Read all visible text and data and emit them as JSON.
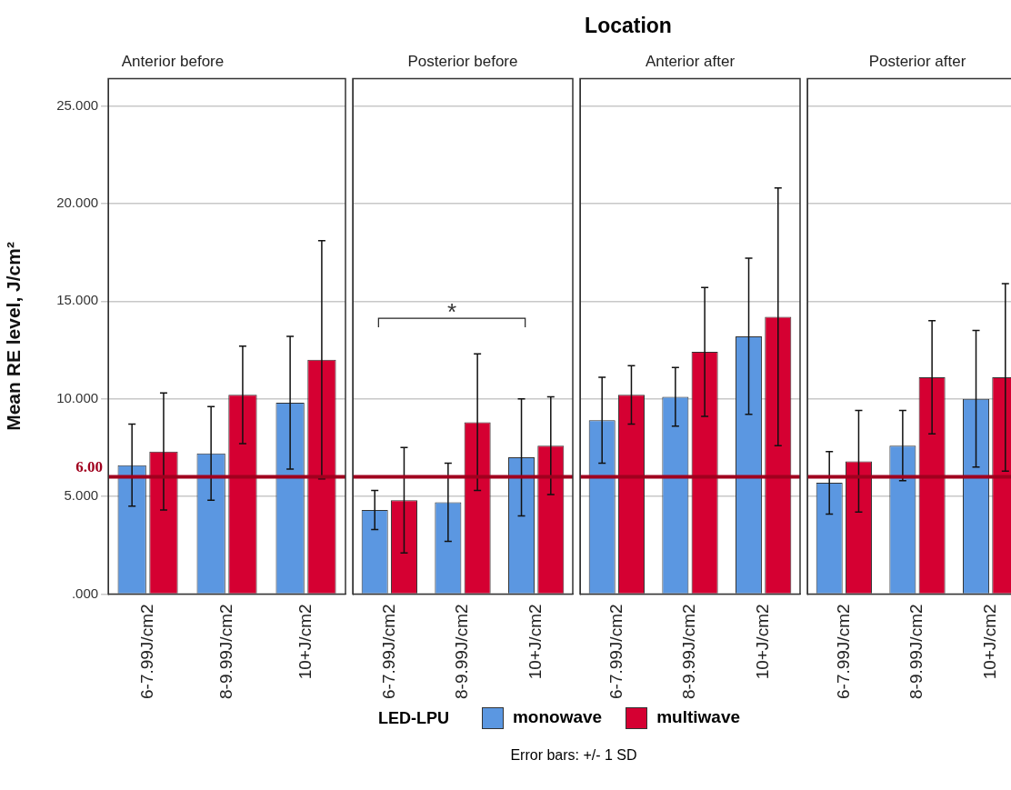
{
  "chart_data": [
    {
      "type": "bar",
      "subtitle": "Anterior before",
      "ylabel": "Mean RE level, J/cm²",
      "categories": [
        "6-7.99J/cm2",
        "8-9.99J/cm2",
        "10+J/cm2"
      ],
      "series": [
        {
          "name": "monowave",
          "color": "#5b97e1",
          "values": [
            6.6,
            7.2,
            9.8
          ],
          "errors": [
            2.1,
            2.4,
            3.4
          ]
        },
        {
          "name": "multiwave",
          "color": "#d50032",
          "values": [
            7.3,
            10.2,
            12.0
          ],
          "errors": [
            3.0,
            2.5,
            6.1
          ]
        }
      ],
      "ylim": [
        0,
        26.4
      ],
      "yticks": [
        {
          "value": 0,
          "label": ".000"
        },
        {
          "value": 5,
          "label": "5.000"
        },
        {
          "value": 10,
          "label": "10.000"
        },
        {
          "value": 15,
          "label": "15.000"
        },
        {
          "value": 20,
          "label": "20.000"
        },
        {
          "value": 25,
          "label": "25.000"
        }
      ],
      "grid": "y",
      "legend": "bottom",
      "legend_title": "LED-LPU",
      "ref_lines": [
        {
          "axis": "y",
          "value": 6,
          "label": "6.00",
          "color": "#a0001e"
        }
      ],
      "annotations": [
        "Error bars: +/- 1 SD"
      ]
    },
    {
      "type": "bar",
      "subtitle": "Posterior before",
      "categories": [
        "6-7.99J/cm2",
        "8-9.99J/cm2",
        "10+J/cm2"
      ],
      "series": [
        {
          "name": "monowave",
          "color": "#5b97e1",
          "values": [
            4.3,
            4.7,
            7.0
          ],
          "errors": [
            1.0,
            2.0,
            3.0
          ]
        },
        {
          "name": "multiwave",
          "color": "#d50032",
          "values": [
            4.8,
            8.8,
            7.6
          ],
          "errors": [
            2.7,
            3.5,
            2.5
          ]
        }
      ],
      "ylim": [
        0,
        26.4
      ],
      "yticks": [
        0,
        5,
        10,
        15,
        20,
        25
      ],
      "grid": "y",
      "tick_labels": "x",
      "ref_lines": [
        {
          "axis": "y",
          "value": 6,
          "color": "#a0001e"
        }
      ],
      "annotations": [
        "*"
      ]
    },
    {
      "type": "bar",
      "title": "Location",
      "subtitle": "Anterior after",
      "categories": [
        "6-7.99J/cm2",
        "8-9.99J/cm2",
        "10+J/cm2"
      ],
      "series": [
        {
          "name": "monowave",
          "color": "#5b97e1",
          "values": [
            8.9,
            10.1,
            13.2
          ],
          "errors": [
            2.2,
            1.5,
            4.0
          ]
        },
        {
          "name": "multiwave",
          "color": "#d50032",
          "values": [
            10.2,
            12.4,
            14.2
          ],
          "errors": [
            1.5,
            3.3,
            6.6
          ]
        }
      ],
      "ylim": [
        0,
        26.4
      ],
      "yticks": [
        0,
        5,
        10,
        15,
        20,
        25
      ],
      "grid": "y",
      "tick_labels": "x",
      "ref_lines": [
        {
          "axis": "y",
          "value": 6,
          "color": "#a0001e"
        }
      ]
    },
    {
      "type": "bar",
      "subtitle": "Posterior after",
      "categories": [
        "6-7.99J/cm2",
        "8-9.99J/cm2",
        "10+J/cm2"
      ],
      "series": [
        {
          "name": "monowave",
          "color": "#5b97e1",
          "values": [
            5.7,
            7.6,
            10.0
          ],
          "errors": [
            1.6,
            1.8,
            3.5
          ]
        },
        {
          "name": "multiwave",
          "color": "#d50032",
          "values": [
            6.8,
            11.1,
            11.1
          ],
          "errors": [
            2.6,
            2.9,
            4.8
          ]
        }
      ],
      "ylim": [
        0,
        26.4
      ],
      "yticks": [
        0,
        5,
        10,
        15,
        20,
        25
      ],
      "grid": "y",
      "tick_labels": "x",
      "ref_lines": [
        {
          "axis": "y",
          "value": 6,
          "color": "#a0001e"
        }
      ]
    }
  ]
}
